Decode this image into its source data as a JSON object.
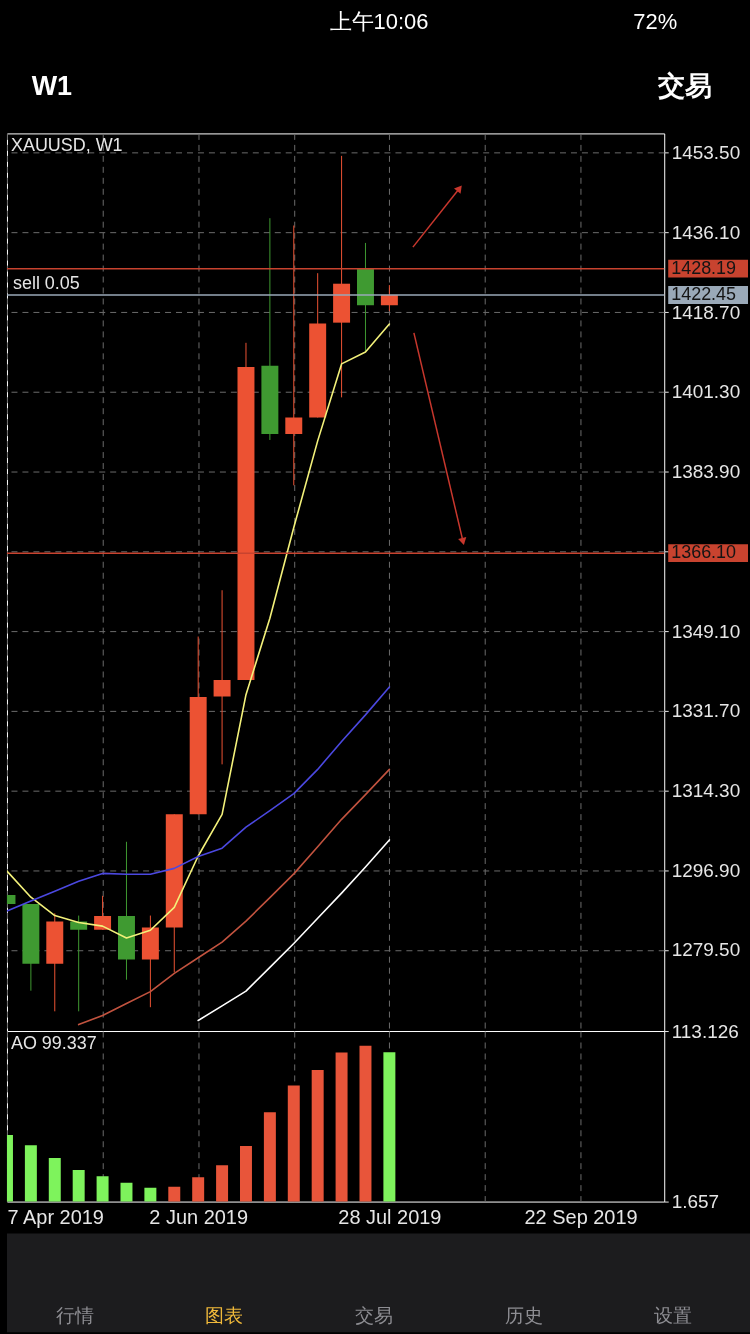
{
  "chart_data": [
    {
      "type": "candlestick",
      "title": "XAUUSD, W1",
      "x": [
        "2019-04-07",
        "2019-04-14",
        "2019-04-21",
        "2019-04-28",
        "2019-05-05",
        "2019-05-12",
        "2019-05-19",
        "2019-05-26",
        "2019-06-02",
        "2019-06-09",
        "2019-06-16",
        "2019-06-23",
        "2019-06-30",
        "2019-07-07",
        "2019-07-14",
        "2019-07-21",
        "2019-07-28"
      ],
      "ohlc": [
        [
          1291.5,
          1291.5,
          1289.5,
          1289.5
        ],
        [
          1289.5,
          1289.5,
          1270.6,
          1276.5
        ],
        [
          1276.5,
          1287.5,
          1266.1,
          1285.7
        ],
        [
          1285.7,
          1287.0,
          1266.1,
          1283.9
        ],
        [
          1283.9,
          1291.3,
          1283.9,
          1286.9
        ],
        [
          1286.9,
          1303.1,
          1273.0,
          1277.4
        ],
        [
          1277.4,
          1287.0,
          1267.0,
          1284.4
        ],
        [
          1284.4,
          1309.1,
          1274.6,
          1309.1
        ],
        [
          1309.1,
          1347.9,
          1309.1,
          1334.7
        ],
        [
          1334.8,
          1358.0,
          1320.0,
          1338.4
        ],
        [
          1338.4,
          1412.0,
          1338.4,
          1406.7
        ],
        [
          1407.0,
          1439.2,
          1390.8,
          1392.1
        ],
        [
          1392.1,
          1437.6,
          1380.9,
          1395.7
        ],
        [
          1395.7,
          1427.2,
          1395.7,
          1416.2
        ],
        [
          1416.4,
          1452.8,
          1400.1,
          1424.9
        ],
        [
          1428.1,
          1433.8,
          1410.2,
          1420.2
        ],
        [
          1420.2,
          1424.6,
          1418.9,
          1422.45
        ]
      ],
      "colors": [
        "#3f9a31",
        "#3f9a31",
        "#ec5233",
        "#3f9a31",
        "#ec5233",
        "#3f9a31",
        "#ec5233",
        "#ec5233",
        "#ec5233",
        "#ec5233",
        "#ec5233",
        "#3f9a31",
        "#ec5233",
        "#ec5233",
        "#ec5233",
        "#3f9a31",
        "#ec5233"
      ],
      "series": [
        {
          "type": "line",
          "color": "#f3f17a",
          "x": [
            "2019-04-07",
            "2019-04-14",
            "2019-04-21",
            "2019-04-28",
            "2019-05-05",
            "2019-05-12",
            "2019-05-19",
            "2019-05-26",
            "2019-06-02",
            "2019-06-09",
            "2019-06-16",
            "2019-06-23",
            "2019-06-30",
            "2019-07-07",
            "2019-07-14",
            "2019-07-21",
            "2019-07-28"
          ],
          "values": [
            1296.7,
            1291.0,
            1287.0,
            1285.5,
            1284.7,
            1282.1,
            1283.8,
            1288.8,
            1300.0,
            1309.1,
            1335.2,
            1351.9,
            1371.7,
            1390.6,
            1407.4,
            1410.0,
            1416.1
          ]
        },
        {
          "type": "line",
          "color": "#4b48e0",
          "x": [
            "2019-04-07",
            "2019-04-14",
            "2019-04-21",
            "2019-04-28",
            "2019-05-05",
            "2019-05-12",
            "2019-05-19",
            "2019-05-26",
            "2019-06-02",
            "2019-06-09",
            "2019-06-16",
            "2019-06-23",
            "2019-06-30",
            "2019-07-07",
            "2019-07-14",
            "2019-07-21",
            "2019-07-28"
          ],
          "values": [
            1288.0,
            1290.2,
            1292.3,
            1294.5,
            1296.2,
            1296.0,
            1296.0,
            1297.3,
            1299.9,
            1301.7,
            1306.3,
            1309.9,
            1313.6,
            1318.9,
            1325.0,
            1330.8,
            1336.9
          ]
        },
        {
          "type": "line",
          "color": "#c2533f",
          "x": [
            "2019-04-28",
            "2019-05-05",
            "2019-05-12",
            "2019-05-19",
            "2019-05-26",
            "2019-06-02",
            "2019-06-09",
            "2019-06-16",
            "2019-06-23",
            "2019-06-30",
            "2019-07-07",
            "2019-07-14",
            "2019-07-21",
            "2019-07-28"
          ],
          "values": [
            1263.2,
            1265.2,
            1267.8,
            1270.4,
            1274.4,
            1277.8,
            1281.2,
            1285.8,
            1290.9,
            1296.1,
            1302.0,
            1308.0,
            1313.4,
            1318.9
          ]
        },
        {
          "type": "line",
          "color": "#ffffff",
          "x": [
            "2019-06-02",
            "2019-06-09",
            "2019-06-16",
            "2019-06-23",
            "2019-06-30",
            "2019-07-07",
            "2019-07-14",
            "2019-07-21",
            "2019-07-28"
          ],
          "values": [
            1264.1,
            1267.3,
            1270.5,
            1275.7,
            1280.9,
            1286.4,
            1291.9,
            1297.6,
            1303.5
          ]
        }
      ],
      "xlim": [
        "2019-04-07",
        "2019-10-16T12:00"
      ],
      "xticks": [
        {
          "value": "2019-04-07",
          "label": null
        },
        {
          "value": "2019-05-05",
          "label": null
        },
        {
          "value": "2019-06-02",
          "label": null
        },
        {
          "value": "2019-06-30",
          "label": null
        },
        {
          "value": "2019-07-28",
          "label": null
        },
        {
          "value": "2019-08-25",
          "label": null
        },
        {
          "value": "2019-09-22",
          "label": null
        }
      ],
      "ylim": [
        1261.8,
        1457.7
      ],
      "yticks": [
        {
          "value": 1453.5,
          "label": "1453.50"
        },
        {
          "value": 1436.1,
          "label": "1436.10"
        },
        {
          "value": 1418.7,
          "label": "1418.70"
        },
        {
          "value": 1401.3,
          "label": "1401.30"
        },
        {
          "value": 1383.9,
          "label": "1383.90"
        },
        {
          "value": 1366.5,
          "label": null
        },
        {
          "value": 1349.1,
          "label": "1349.10"
        },
        {
          "value": 1331.7,
          "label": "1331.70"
        },
        {
          "value": 1314.3,
          "label": "1314.30"
        },
        {
          "value": 1296.9,
          "label": "1296.90"
        },
        {
          "value": 1279.5,
          "label": "1279.50"
        }
      ],
      "grid": true,
      "tick_labels": "y",
      "ref_lines": [
        {
          "axis": "y",
          "value": 1428.19,
          "label": "1428.19",
          "color": "#c8432f"
        },
        {
          "axis": "y",
          "value": 1422.45,
          "label": "1422.45",
          "color": "#9aa9b8"
        },
        {
          "axis": "y",
          "value": 1366.1,
          "label": "1366.10",
          "color": "#c8432f"
        }
      ],
      "annotations": [
        {
          "text": "sell 0.05",
          "x": "2019-04-07",
          "y": 1428.19
        },
        "上午10:06",
        "72%",
        "W1",
        "交易",
        "行情",
        "图表",
        "交易",
        "历史",
        "设置"
      ]
    },
    {
      "type": "bar",
      "title": "AO 99.337",
      "x": [
        "2019-04-07",
        "2019-04-14",
        "2019-04-21",
        "2019-04-28",
        "2019-05-05",
        "2019-05-12",
        "2019-05-19",
        "2019-05-26",
        "2019-06-02",
        "2019-06-09",
        "2019-06-16",
        "2019-06-23",
        "2019-06-30",
        "2019-07-07",
        "2019-07-14",
        "2019-07-21",
        "2019-07-28"
      ],
      "values": [
        45.1,
        38.5,
        30.1,
        22.3,
        18.2,
        13.9,
        10.7,
        11.4,
        17.6,
        25.4,
        37.9,
        60.0,
        77.5,
        87.6,
        99.1,
        103.5,
        99.337
      ],
      "colors": [
        "#7ef35c",
        "#7ef35c",
        "#7ef35c",
        "#7ef35c",
        "#7ef35c",
        "#7ef35c",
        "#7ef35c",
        "#e8553a",
        "#e8553a",
        "#e8553a",
        "#e8553a",
        "#e8553a",
        "#e8553a",
        "#e8553a",
        "#e8553a",
        "#e8553a",
        "#7ef35c"
      ],
      "xlim": [
        "2019-04-07",
        "2019-10-16T12:00"
      ],
      "xticks": [
        {
          "value": "2019-04-07",
          "label": "7 Apr 2019"
        },
        {
          "value": "2019-05-05",
          "label": null
        },
        {
          "value": "2019-06-02",
          "label": "2 Jun 2019"
        },
        {
          "value": "2019-06-30",
          "label": null
        },
        {
          "value": "2019-07-28",
          "label": "28 Jul 2019"
        },
        {
          "value": "2019-08-25",
          "label": null
        },
        {
          "value": "2019-09-22",
          "label": "22 Sep 2019"
        }
      ],
      "ylim": [
        1.657,
        113.126
      ],
      "yticks": [
        1.657,
        113.126
      ],
      "grid": "x"
    }
  ]
}
